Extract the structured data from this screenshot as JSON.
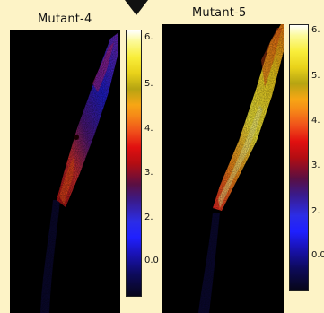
{
  "panels": [
    {
      "title": "Mutant-4",
      "colorbar_ticks": [
        "6.",
        "5.",
        "4.",
        "3.",
        "2.",
        "0.0"
      ]
    },
    {
      "title": "Mutant-5",
      "colorbar_ticks": [
        "6.",
        "5.",
        "4.",
        "3.",
        "2.",
        "0.0"
      ]
    }
  ],
  "colors": {
    "page_background": "#fdf3c6",
    "image_background": "#000000"
  },
  "icons": {
    "top_marker": "triangle-down-icon"
  }
}
